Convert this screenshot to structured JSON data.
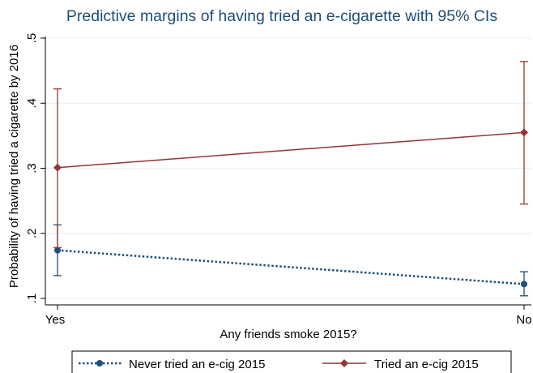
{
  "chart_data": {
    "type": "line",
    "title": "Predictive margins of having tried an e-cigarette with 95% CIs",
    "xlabel": "Any friends smoke 2015?",
    "ylabel": "Probability of having tried a cigarette by 2016",
    "categories": [
      "Yes",
      "No"
    ],
    "ylim": [
      0.1,
      0.5
    ],
    "yticks": [
      0.1,
      0.2,
      0.3,
      0.4,
      0.5
    ],
    "ytick_labels": [
      ".1",
      ".2",
      ".3",
      ".4",
      ".5"
    ],
    "grid": true,
    "legend_position": "bottom",
    "series": [
      {
        "name": "Never tried an e-cig 2015",
        "values": [
          0.174,
          0.122
        ],
        "ci_lower": [
          0.135,
          0.104
        ],
        "ci_upper": [
          0.213,
          0.141
        ],
        "color": "#1f4e79",
        "line_style": "dotted",
        "marker": "circle"
      },
      {
        "name": "Tried an e-cig 2015",
        "values": [
          0.301,
          0.355
        ],
        "ci_lower": [
          0.178,
          0.245
        ],
        "ci_upper": [
          0.422,
          0.464
        ],
        "color": "#943634",
        "line_style": "solid",
        "marker": "diamond"
      }
    ]
  }
}
